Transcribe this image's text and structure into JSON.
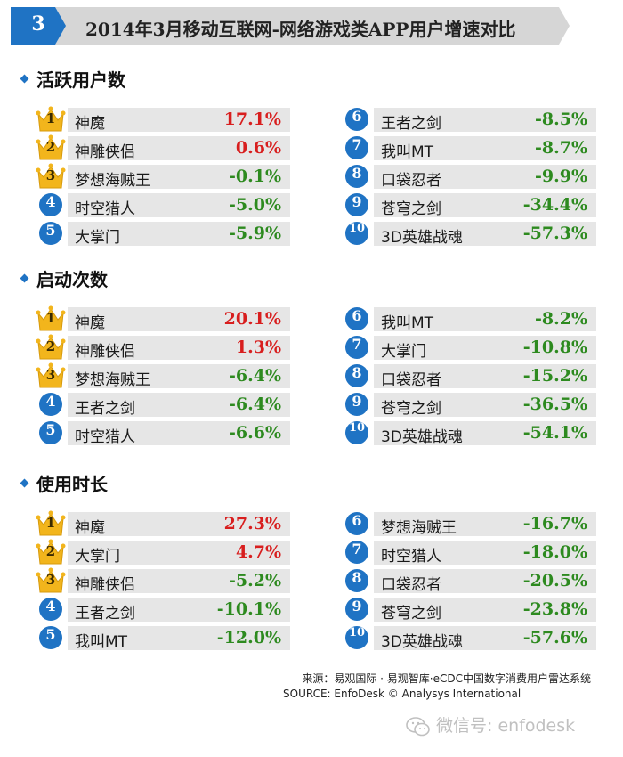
{
  "header": {
    "badge": "3",
    "title": "2014年3月移动互联网-网络游戏类APP用户增速对比"
  },
  "colors": {
    "accent": "#1f73c4",
    "positive": "#d81e1e",
    "negative": "#2d8a1f",
    "bar": "#e6e6e6",
    "crown": "#f2b51c"
  },
  "chart_data": [
    {
      "type": "table",
      "title": "活跃用户数",
      "rows": [
        {
          "rank": "1",
          "name": "神魔",
          "value": "17.1%"
        },
        {
          "rank": "2",
          "name": "神雕侠侣",
          "value": "0.6%"
        },
        {
          "rank": "3",
          "name": "梦想海贼王",
          "value": "-0.1%"
        },
        {
          "rank": "4",
          "name": "时空猎人",
          "value": "-5.0%"
        },
        {
          "rank": "5",
          "name": "大掌门",
          "value": "-5.9%"
        },
        {
          "rank": "6",
          "name": "王者之剑",
          "value": "-8.5%"
        },
        {
          "rank": "7",
          "name": "我叫MT",
          "value": "-8.7%"
        },
        {
          "rank": "8",
          "name": "口袋忍者",
          "value": "-9.9%"
        },
        {
          "rank": "9",
          "name": "苍穹之剑",
          "value": "-34.4%"
        },
        {
          "rank": "10",
          "name": "3D英雄战魂",
          "value": "-57.3%"
        }
      ]
    },
    {
      "type": "table",
      "title": "启动次数",
      "rows": [
        {
          "rank": "1",
          "name": "神魔",
          "value": "20.1%"
        },
        {
          "rank": "2",
          "name": "神雕侠侣",
          "value": "1.3%"
        },
        {
          "rank": "3",
          "name": "梦想海贼王",
          "value": "-6.4%"
        },
        {
          "rank": "4",
          "name": "王者之剑",
          "value": "-6.4%"
        },
        {
          "rank": "5",
          "name": "时空猎人",
          "value": "-6.6%"
        },
        {
          "rank": "6",
          "name": "我叫MT",
          "value": "-8.2%"
        },
        {
          "rank": "7",
          "name": "大掌门",
          "value": "-10.8%"
        },
        {
          "rank": "8",
          "name": "口袋忍者",
          "value": "-15.2%"
        },
        {
          "rank": "9",
          "name": "苍穹之剑",
          "value": "-36.5%"
        },
        {
          "rank": "10",
          "name": "3D英雄战魂",
          "value": "-54.1%"
        }
      ]
    },
    {
      "type": "table",
      "title": "使用时长",
      "rows": [
        {
          "rank": "1",
          "name": "神魔",
          "value": "27.3%"
        },
        {
          "rank": "2",
          "name": "大掌门",
          "value": "4.7%"
        },
        {
          "rank": "3",
          "name": "神雕侠侣",
          "value": "-5.2%"
        },
        {
          "rank": "4",
          "name": "王者之剑",
          "value": "-10.1%"
        },
        {
          "rank": "5",
          "name": "我叫MT",
          "value": "-12.0%"
        },
        {
          "rank": "6",
          "name": "梦想海贼王",
          "value": "-16.7%"
        },
        {
          "rank": "7",
          "name": "时空猎人",
          "value": "-18.0%"
        },
        {
          "rank": "8",
          "name": "口袋忍者",
          "value": "-20.5%"
        },
        {
          "rank": "9",
          "name": "苍穹之剑",
          "value": "-23.8%"
        },
        {
          "rank": "10",
          "name": "3D英雄战魂",
          "value": "-57.6%"
        }
      ]
    }
  ],
  "footer": {
    "source_cn": "来源：易观国际 · 易观智库·eCDC中国数字消费用户雷达系统",
    "source_en": "SOURCE: EnfoDesk © Analysys International",
    "watermark": "微信号: enfodesk",
    "watermark_icon": "wechat-icon"
  }
}
